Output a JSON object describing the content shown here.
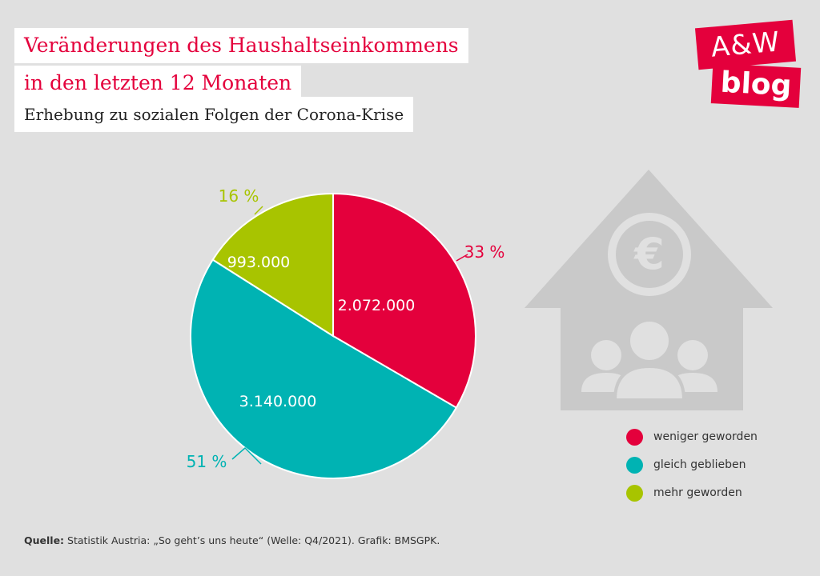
{
  "header": {
    "title_line1": "Veränderungen des Haushaltseinkommens",
    "title_line2": "in den letzten 12 Monaten",
    "subtitle": "Erhebung zu sozialen Folgen der Corona-Krise"
  },
  "logo": {
    "line1": "A&W",
    "line2": "blog"
  },
  "colors": {
    "red": "#e4003c",
    "teal": "#00b3b3",
    "green": "#a8c400",
    "icon_gray": "#c9c9c9",
    "background": "#e0e0e0"
  },
  "icons": [
    "house-euro-family-icon"
  ],
  "chart_data": {
    "type": "pie",
    "title": "Veränderungen des Haushaltseinkommens in den letzten 12 Monaten",
    "subtitle": "Erhebung zu sozialen Folgen der Corona-Krise",
    "slices": [
      {
        "name": "weniger geworden",
        "value": 2072000,
        "value_label": "2.072.000",
        "percent": 33,
        "percent_label": "33 %",
        "color": "#e4003c"
      },
      {
        "name": "gleich geblieben",
        "value": 3140000,
        "value_label": "3.140.000",
        "percent": 51,
        "percent_label": "51 %",
        "color": "#00b3b3"
      },
      {
        "name": "mehr geworden",
        "value": 993000,
        "value_label": "993.000",
        "percent": 16,
        "percent_label": "16 %",
        "color": "#a8c400"
      }
    ],
    "legend_position": "right"
  },
  "legend": [
    {
      "label": "weniger geworden",
      "color": "#e4003c"
    },
    {
      "label": "gleich geblieben",
      "color": "#00b3b3"
    },
    {
      "label": "mehr geworden",
      "color": "#a8c400"
    }
  ],
  "source": {
    "label": "Quelle:",
    "text": " Statistik Austria: „So geht’s uns heute“ (Welle: Q4/2021). Grafik: BMSGPK."
  }
}
